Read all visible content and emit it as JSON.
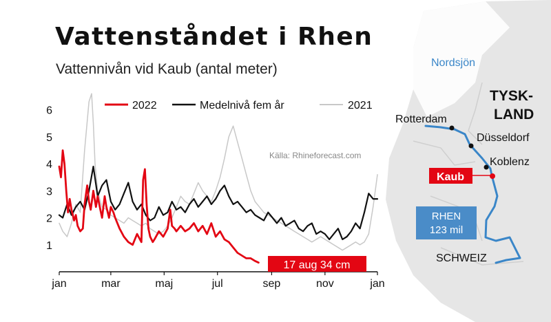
{
  "title": "Vattenståndet i Rhen",
  "subtitle": "Vattennivån vid Kaub (antal meter)",
  "source": "Källa: Rhineforecast.com",
  "annotation": "17 aug 34 cm",
  "map": {
    "sea_label": "Nordsjön",
    "country_label_line1": "TYSK-",
    "country_label_line2": "LAND",
    "south_label": "SCHWEIZ",
    "cities": [
      "Rotterdam",
      "Düsseldorf",
      "Koblenz"
    ],
    "highlight_city": "Kaub",
    "river_line1": "RHEN",
    "river_line2": "123 mil"
  },
  "colors": {
    "series_2022": "#e30613",
    "series_avg": "#111111",
    "series_2021": "#c8c8c8",
    "river": "#3a86c8",
    "river_box": "#4a8cc8",
    "highlight": "#e30613",
    "map_bg": "#e6e6e6"
  },
  "chart_data": {
    "type": "line",
    "title": "Vattenståndet i Rhen",
    "subtitle": "Vattennivån vid Kaub (antal meter)",
    "ylim": [
      0,
      6.5
    ],
    "xlim": [
      1,
      365
    ],
    "yticks": [
      1,
      2,
      3,
      4,
      5,
      6
    ],
    "xticks": [
      {
        "day": 1,
        "label": "jan"
      },
      {
        "day": 60,
        "label": "mar"
      },
      {
        "day": 121,
        "label": "maj"
      },
      {
        "day": 182,
        "label": "jul"
      },
      {
        "day": 244,
        "label": "sep"
      },
      {
        "day": 305,
        "label": "nov"
      },
      {
        "day": 365,
        "label": "jan"
      }
    ],
    "legend_position": "top",
    "series": [
      {
        "name": "2021",
        "color": "#c8c8c8",
        "x": [
          1,
          5,
          10,
          15,
          20,
          25,
          30,
          35,
          38,
          40,
          42,
          45,
          48,
          50,
          55,
          60,
          65,
          70,
          75,
          80,
          85,
          90,
          95,
          100,
          105,
          110,
          115,
          120,
          125,
          130,
          135,
          140,
          145,
          150,
          155,
          160,
          165,
          170,
          175,
          180,
          185,
          190,
          195,
          200,
          205,
          210,
          215,
          220,
          225,
          230,
          235,
          240,
          245,
          250,
          255,
          260,
          265,
          270,
          275,
          280,
          285,
          290,
          295,
          300,
          305,
          310,
          315,
          320,
          325,
          330,
          335,
          340,
          345,
          350,
          355,
          360,
          365
        ],
        "y": [
          1.8,
          1.5,
          1.3,
          1.8,
          2.5,
          2.2,
          4.5,
          6.3,
          6.6,
          5.5,
          4.0,
          3.0,
          2.6,
          2.4,
          2.3,
          2.1,
          2.0,
          1.9,
          1.8,
          2.0,
          1.9,
          1.8,
          1.7,
          1.8,
          1.6,
          1.5,
          1.4,
          1.5,
          1.7,
          2.0,
          2.4,
          2.8,
          2.6,
          2.5,
          2.9,
          3.3,
          3.0,
          2.8,
          2.6,
          3.0,
          3.5,
          4.2,
          5.0,
          5.4,
          4.8,
          4.2,
          3.6,
          3.0,
          2.6,
          2.4,
          2.2,
          2.1,
          2.0,
          1.9,
          1.8,
          1.7,
          1.6,
          1.5,
          1.4,
          1.3,
          1.2,
          1.1,
          1.2,
          1.3,
          1.2,
          1.1,
          1.0,
          0.9,
          0.8,
          0.9,
          1.0,
          1.1,
          1.0,
          1.1,
          1.4,
          2.4,
          3.6
        ]
      },
      {
        "name": "Medelnivå fem år",
        "color": "#111111",
        "x": [
          1,
          5,
          10,
          15,
          20,
          25,
          30,
          35,
          40,
          45,
          50,
          55,
          60,
          65,
          70,
          75,
          80,
          85,
          90,
          95,
          100,
          105,
          110,
          115,
          120,
          125,
          130,
          135,
          140,
          145,
          150,
          155,
          160,
          165,
          170,
          175,
          180,
          185,
          190,
          195,
          200,
          205,
          210,
          215,
          220,
          225,
          230,
          235,
          240,
          245,
          250,
          255,
          260,
          265,
          270,
          275,
          280,
          285,
          290,
          295,
          300,
          305,
          310,
          315,
          320,
          325,
          330,
          335,
          340,
          345,
          350,
          355,
          360,
          365
        ],
        "y": [
          2.1,
          2.0,
          2.5,
          2.1,
          2.4,
          2.6,
          2.3,
          3.0,
          3.9,
          2.8,
          3.2,
          3.4,
          2.6,
          2.3,
          2.5,
          2.9,
          3.3,
          2.6,
          2.3,
          2.5,
          2.1,
          1.9,
          2.0,
          2.4,
          2.1,
          2.2,
          2.6,
          2.3,
          2.4,
          2.2,
          2.5,
          2.7,
          2.4,
          2.6,
          2.8,
          2.5,
          2.7,
          3.0,
          3.2,
          2.8,
          2.5,
          2.6,
          2.4,
          2.2,
          2.3,
          2.1,
          2.0,
          1.9,
          2.2,
          2.0,
          1.8,
          2.0,
          1.7,
          1.8,
          1.9,
          1.6,
          1.5,
          1.7,
          1.8,
          1.4,
          1.5,
          1.4,
          1.2,
          1.4,
          1.6,
          1.2,
          1.3,
          1.5,
          1.8,
          1.6,
          2.2,
          2.9,
          2.7,
          2.7
        ]
      },
      {
        "name": "2022",
        "color": "#e30613",
        "x": [
          1,
          3,
          5,
          7,
          9,
          11,
          13,
          15,
          18,
          20,
          22,
          25,
          28,
          30,
          33,
          35,
          37,
          40,
          43,
          45,
          48,
          50,
          53,
          55,
          58,
          60,
          63,
          65,
          70,
          75,
          80,
          85,
          90,
          95,
          97,
          99,
          101,
          103,
          105,
          108,
          110,
          115,
          120,
          125,
          128,
          130,
          133,
          135,
          140,
          145,
          150,
          155,
          160,
          165,
          170,
          175,
          180,
          185,
          190,
          195,
          200,
          205,
          210,
          215,
          220,
          225,
          229
        ],
        "y": [
          3.9,
          3.5,
          4.5,
          4.0,
          3.0,
          2.2,
          2.7,
          2.3,
          1.9,
          2.1,
          1.7,
          1.5,
          1.6,
          2.5,
          3.2,
          2.6,
          2.3,
          3.0,
          2.4,
          2.8,
          2.3,
          2.0,
          2.8,
          2.4,
          2.0,
          2.4,
          2.2,
          2.0,
          1.6,
          1.3,
          1.1,
          1.0,
          1.4,
          1.1,
          3.4,
          3.8,
          2.5,
          1.6,
          1.3,
          1.1,
          1.2,
          1.5,
          1.3,
          1.6,
          2.3,
          1.7,
          1.6,
          1.5,
          1.7,
          1.5,
          1.6,
          1.8,
          1.5,
          1.7,
          1.4,
          1.8,
          1.3,
          1.5,
          1.2,
          1.1,
          0.9,
          0.7,
          0.6,
          0.5,
          0.5,
          0.4,
          0.34
        ]
      }
    ]
  }
}
